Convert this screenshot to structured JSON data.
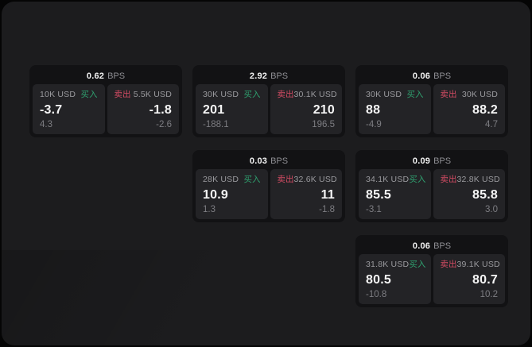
{
  "labels": {
    "bps_unit": "BPS",
    "buy": "买入",
    "sell": "卖出"
  },
  "colors": {
    "buy": "#2fa06f",
    "sell": "#d24b63",
    "panel_bg": "#1c1c1e",
    "card_bg": "#121214",
    "tile_bg": "#232326"
  },
  "cards": [
    {
      "row": 1,
      "col": 1,
      "spread_bps": "0.62",
      "buy": {
        "size": "10K USD",
        "price": "-3.7",
        "sub": "4.3"
      },
      "sell": {
        "size": "5.5K USD",
        "price": "-1.8",
        "sub": "-2.6"
      }
    },
    {
      "row": 1,
      "col": 2,
      "spread_bps": "2.92",
      "buy": {
        "size": "30K USD",
        "price": "201",
        "sub": "-188.1"
      },
      "sell": {
        "size": "30.1K USD",
        "price": "210",
        "sub": "196.5"
      }
    },
    {
      "row": 1,
      "col": 3,
      "spread_bps": "0.06",
      "buy": {
        "size": "30K USD",
        "price": "88",
        "sub": "-4.9"
      },
      "sell": {
        "size": "30K USD",
        "price": "88.2",
        "sub": "4.7"
      }
    },
    {
      "row": 2,
      "col": 2,
      "spread_bps": "0.03",
      "buy": {
        "size": "28K USD",
        "price": "10.9",
        "sub": "1.3"
      },
      "sell": {
        "size": "32.6K USD",
        "price": "11",
        "sub": "-1.8"
      }
    },
    {
      "row": 2,
      "col": 3,
      "spread_bps": "0.09",
      "buy": {
        "size": "34.1K USD",
        "price": "85.5",
        "sub": "-3.1"
      },
      "sell": {
        "size": "32.8K USD",
        "price": "85.8",
        "sub": "3.0"
      }
    },
    {
      "row": 3,
      "col": 3,
      "spread_bps": "0.06",
      "buy": {
        "size": "31.8K USD",
        "price": "80.5",
        "sub": "-10.8"
      },
      "sell": {
        "size": "39.1K USD",
        "price": "80.7",
        "sub": "10.2"
      }
    }
  ]
}
